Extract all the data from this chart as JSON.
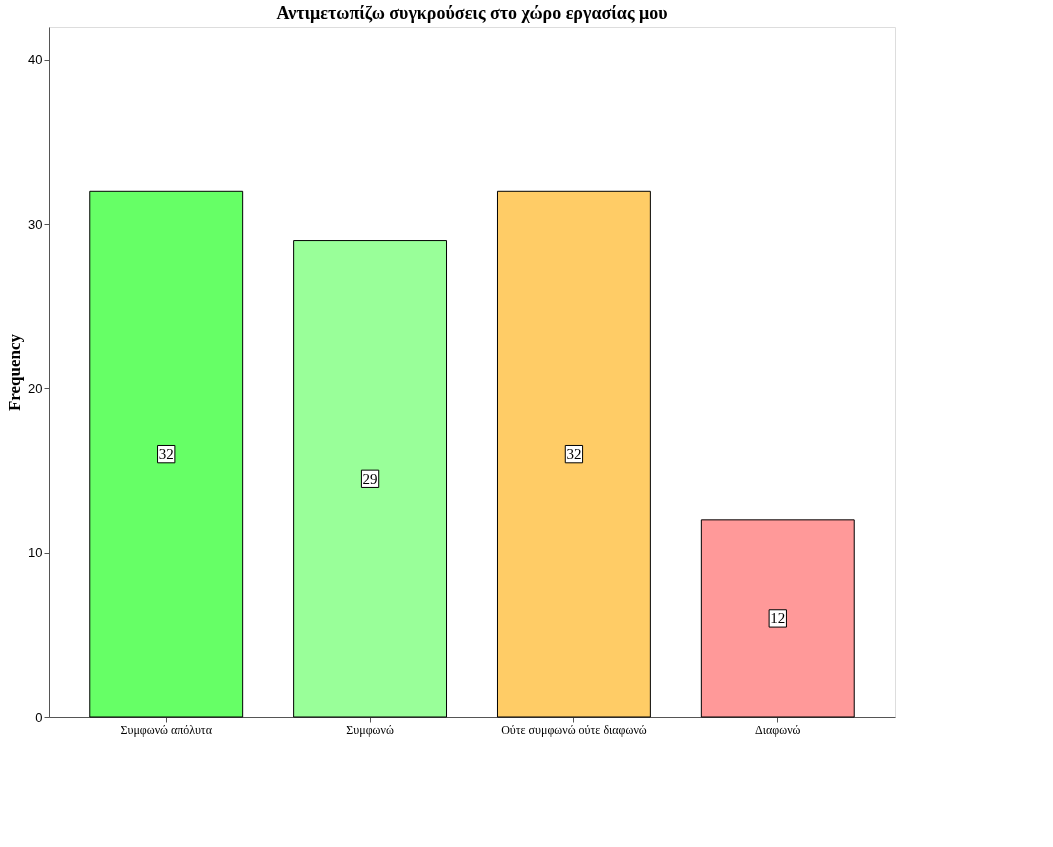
{
  "chart_data": {
    "type": "bar",
    "title": "Αντιμετωπίζω συγκρούσεις στο χώρο εργασίας μου",
    "ylabel": "Frequency",
    "categories": [
      "Συμφωνώ απόλυτα",
      "Συμφωνώ",
      "Ούτε συμφωνώ ούτε διαφωνώ",
      "Διαφωνώ"
    ],
    "values": [
      32,
      29,
      32,
      12
    ],
    "colors": [
      "#66ff66",
      "#99ff99",
      "#ffcc66",
      "#ff9999"
    ],
    "ylim": [
      0,
      42
    ],
    "yticks": [
      0,
      10,
      20,
      30,
      40
    ],
    "grid": false,
    "data_labels": true
  }
}
